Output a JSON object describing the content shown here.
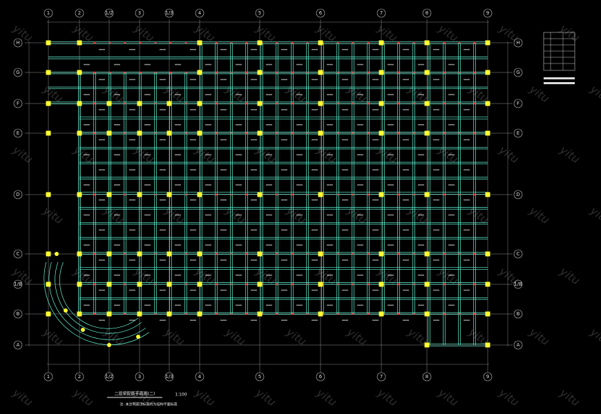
{
  "drawing": {
    "title": "二层梁配筋平面图(二)",
    "scale": "1:100",
    "note": "注: 未注明梁顶标高均为结构平面标高",
    "watermark": "yitu",
    "column_axes": [
      "1",
      "2",
      "1/2",
      "3",
      "1/3",
      "4",
      "5",
      "6",
      "7",
      "8",
      "9"
    ],
    "row_axes": [
      "H",
      "G",
      "F",
      "E",
      "D",
      "C",
      "1/B",
      "B",
      "A"
    ]
  }
}
